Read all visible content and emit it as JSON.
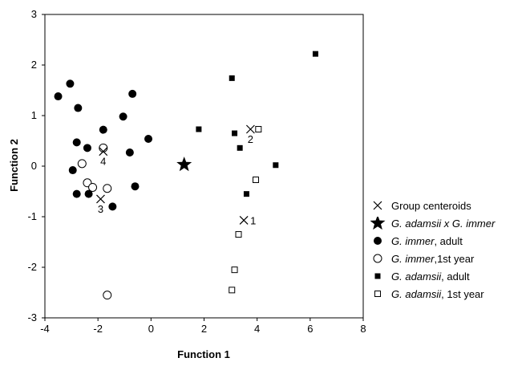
{
  "chart_data": {
    "type": "scatter",
    "xlabel": "Function 1",
    "ylabel": "Function 2",
    "xlim": [
      -4,
      8
    ],
    "ylim": [
      -3,
      3
    ],
    "xticks": [
      "-4",
      "-2",
      "0",
      "2",
      "4",
      "6",
      "8"
    ],
    "yticks": [
      "-3",
      "-2",
      "-1",
      "0",
      "1",
      "2",
      "3"
    ],
    "grid": false,
    "legend_position": "bottom-right, outside plot",
    "series": [
      {
        "key": "centroids",
        "symbol": "cross",
        "legend": {
          "italic": "",
          "plain": "Group centeroids"
        },
        "points": [
          {
            "x": 3.5,
            "y": -1.07,
            "label": "1"
          },
          {
            "x": 3.75,
            "y": 0.73,
            "label": "2"
          },
          {
            "x": -1.9,
            "y": -0.65,
            "label": "3"
          },
          {
            "x": -1.8,
            "y": 0.29,
            "label": "4"
          }
        ]
      },
      {
        "key": "hybrid",
        "symbol": "star",
        "legend": {
          "italic": "G. adamsii x G. immer",
          "plain": ""
        },
        "points": [
          {
            "x": 1.25,
            "y": 0.03
          }
        ]
      },
      {
        "key": "immer_adult",
        "symbol": "filled-circle",
        "legend": {
          "italic": "G. immer",
          "plain": ", adult"
        },
        "points": [
          {
            "x": -3.5,
            "y": 1.38
          },
          {
            "x": -3.05,
            "y": 1.63
          },
          {
            "x": -2.75,
            "y": 1.15
          },
          {
            "x": -2.8,
            "y": 0.47
          },
          {
            "x": -2.4,
            "y": 0.36
          },
          {
            "x": -2.95,
            "y": -0.08
          },
          {
            "x": -2.8,
            "y": -0.55
          },
          {
            "x": -2.35,
            "y": -0.55
          },
          {
            "x": -1.8,
            "y": 0.72
          },
          {
            "x": -1.05,
            "y": 0.98
          },
          {
            "x": -0.7,
            "y": 1.43
          },
          {
            "x": -0.8,
            "y": 0.27
          },
          {
            "x": -0.1,
            "y": 0.54
          },
          {
            "x": -0.6,
            "y": -0.4
          },
          {
            "x": -1.45,
            "y": -0.8
          }
        ]
      },
      {
        "key": "immer_1st",
        "symbol": "open-circle",
        "legend": {
          "italic": "G. immer",
          "plain": ",1st year"
        },
        "points": [
          {
            "x": -2.6,
            "y": 0.05
          },
          {
            "x": -1.8,
            "y": 0.36
          },
          {
            "x": -2.4,
            "y": -0.33
          },
          {
            "x": -2.2,
            "y": -0.42
          },
          {
            "x": -1.65,
            "y": -0.44
          },
          {
            "x": -1.65,
            "y": -2.55
          }
        ]
      },
      {
        "key": "adamsii_adult",
        "symbol": "filled-square",
        "legend": {
          "italic": "G. adamsii",
          "plain": ", adult"
        },
        "points": [
          {
            "x": 6.2,
            "y": 2.22
          },
          {
            "x": 3.05,
            "y": 1.74
          },
          {
            "x": 1.8,
            "y": 0.73
          },
          {
            "x": 3.15,
            "y": 0.65
          },
          {
            "x": 3.35,
            "y": 0.36
          },
          {
            "x": 4.7,
            "y": 0.02
          },
          {
            "x": 3.6,
            "y": -0.55
          }
        ]
      },
      {
        "key": "adamsii_1st",
        "symbol": "open-square",
        "legend": {
          "italic": "G. adamsii",
          "plain": ", 1st year"
        },
        "points": [
          {
            "x": 4.05,
            "y": 0.73
          },
          {
            "x": 3.95,
            "y": -0.27
          },
          {
            "x": 3.3,
            "y": -1.35
          },
          {
            "x": 3.15,
            "y": -2.05
          },
          {
            "x": 3.05,
            "y": -2.45
          }
        ]
      }
    ]
  }
}
